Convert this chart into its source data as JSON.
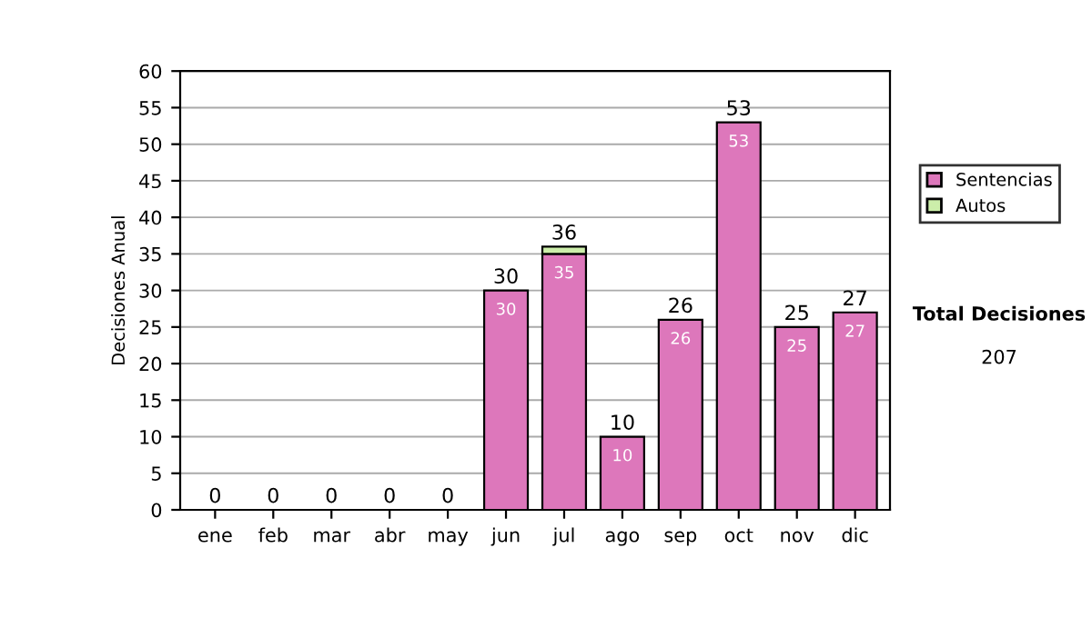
{
  "chart_data": {
    "type": "bar",
    "stacked": true,
    "ylabel": "Decisiones Anual",
    "categories": [
      "ene",
      "feb",
      "mar",
      "abr",
      "may",
      "jun",
      "jul",
      "ago",
      "sep",
      "oct",
      "nov",
      "dic"
    ],
    "series": [
      {
        "name": "Sentencias",
        "color": "#dd77bb",
        "values": [
          0,
          0,
          0,
          0,
          0,
          30,
          35,
          10,
          26,
          53,
          25,
          27
        ],
        "value_labels": [
          null,
          null,
          null,
          null,
          null,
          "30",
          "35",
          "10",
          "26",
          "53",
          "25",
          "27"
        ]
      },
      {
        "name": "Autos",
        "color": "#cceeaa",
        "values": [
          0,
          0,
          0,
          0,
          0,
          0,
          1,
          0,
          0,
          0,
          0,
          0
        ]
      }
    ],
    "totals": [
      "0",
      "0",
      "0",
      "0",
      "0",
      "30",
      "36",
      "10",
      "26",
      "53",
      "25",
      "27"
    ],
    "ylim": [
      0,
      60
    ],
    "yticks": [
      0,
      5,
      10,
      15,
      20,
      25,
      30,
      35,
      40,
      45,
      50,
      55,
      60
    ],
    "grid": "y",
    "legend": "right",
    "annotations": [
      "Total Decisiones",
      "207"
    ]
  }
}
